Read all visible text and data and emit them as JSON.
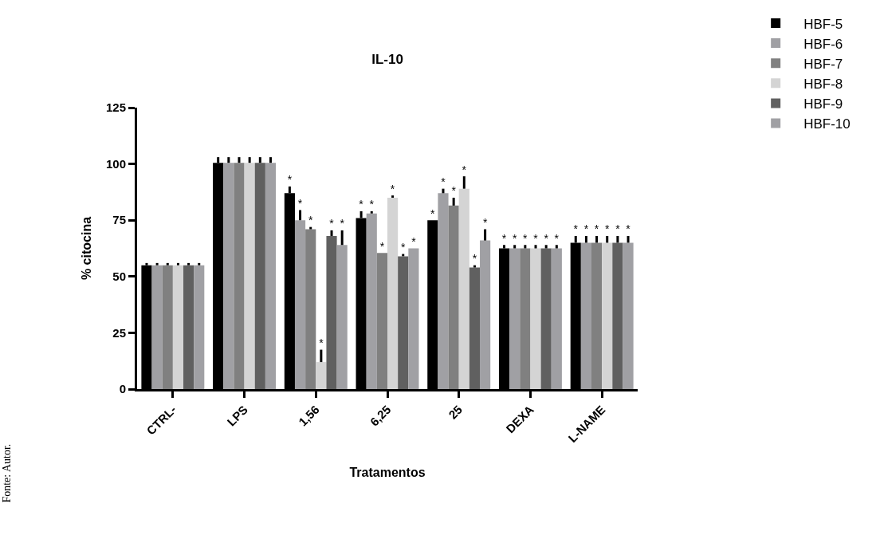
{
  "chart_data": {
    "type": "bar",
    "title": "IL-10",
    "xlabel": "Tratamentos",
    "ylabel": "% citocina",
    "annotations": [
      "Fonte: Autor."
    ],
    "categories": [
      "CTRL-",
      "LPS",
      "1,56",
      "6,25",
      "25",
      "DEXA",
      "L-NAME"
    ],
    "ylim": [
      0,
      125
    ],
    "yticks": [
      0,
      25,
      50,
      75,
      100,
      125
    ],
    "legend": "top right",
    "series": [
      {
        "name": "HBF-5",
        "color": "#000000",
        "values": [
          55,
          100.5,
          87,
          76,
          75,
          62.5,
          65
        ],
        "errors": [
          [
            55,
            56
          ],
          [
            100.5,
            103
          ],
          [
            87,
            90
          ],
          [
            76,
            79
          ],
          null,
          [
            62.5,
            64
          ],
          [
            65,
            68
          ]
        ],
        "value_labels": [
          null,
          null,
          "*",
          "*",
          "*",
          "*",
          "*"
        ]
      },
      {
        "name": "HBF-6",
        "color": "#a0a0a4",
        "values": [
          55,
          100.5,
          75,
          78,
          87,
          62.5,
          65
        ],
        "errors": [
          [
            55,
            56
          ],
          [
            100.5,
            103
          ],
          [
            75,
            79.5
          ],
          [
            78,
            79
          ],
          [
            87,
            89
          ],
          [
            62.5,
            64
          ],
          [
            65,
            68
          ]
        ],
        "value_labels": [
          null,
          null,
          "*",
          "*",
          "*",
          "*",
          "*"
        ]
      },
      {
        "name": "HBF-7",
        "color": "#808080",
        "values": [
          55,
          100.5,
          71,
          60.5,
          81.5,
          62.5,
          65
        ],
        "errors": [
          [
            55,
            56
          ],
          [
            100.5,
            103
          ],
          [
            71,
            72
          ],
          null,
          [
            81.5,
            85
          ],
          [
            62.5,
            64
          ],
          [
            65,
            68
          ]
        ],
        "value_labels": [
          null,
          null,
          "*",
          "*",
          "*",
          "*",
          "*"
        ]
      },
      {
        "name": "HBF-8",
        "color": "#d4d4d4",
        "values": [
          55,
          100.5,
          12,
          85,
          89,
          62.5,
          65
        ],
        "errors": [
          [
            55,
            56
          ],
          [
            100.5,
            103
          ],
          [
            12,
            17.5
          ],
          [
            85,
            86
          ],
          [
            89,
            94.5
          ],
          [
            62.5,
            64
          ],
          [
            65,
            68
          ]
        ],
        "value_labels": [
          null,
          null,
          "*",
          "*",
          "*",
          "*",
          "*"
        ]
      },
      {
        "name": "HBF-9",
        "color": "#606060",
        "values": [
          55,
          100.5,
          68,
          59,
          54,
          62.5,
          65
        ],
        "errors": [
          [
            55,
            56
          ],
          [
            100.5,
            103
          ],
          [
            68,
            70.5
          ],
          [
            59,
            60
          ],
          [
            54,
            55
          ],
          [
            62.5,
            64
          ],
          [
            65,
            68
          ]
        ],
        "value_labels": [
          null,
          null,
          "*",
          "*",
          "*",
          "*",
          "*"
        ]
      },
      {
        "name": "HBF-10",
        "color": "#a0a0a4",
        "values": [
          55,
          100.5,
          64,
          62.5,
          66,
          62.5,
          65
        ],
        "errors": [
          [
            55,
            56
          ],
          [
            100.5,
            103
          ],
          [
            64,
            70.5
          ],
          null,
          [
            66,
            71
          ],
          [
            62.5,
            64
          ],
          [
            65,
            68
          ]
        ],
        "value_labels": [
          null,
          null,
          "*",
          "*",
          "*",
          "*",
          "*"
        ]
      }
    ]
  }
}
